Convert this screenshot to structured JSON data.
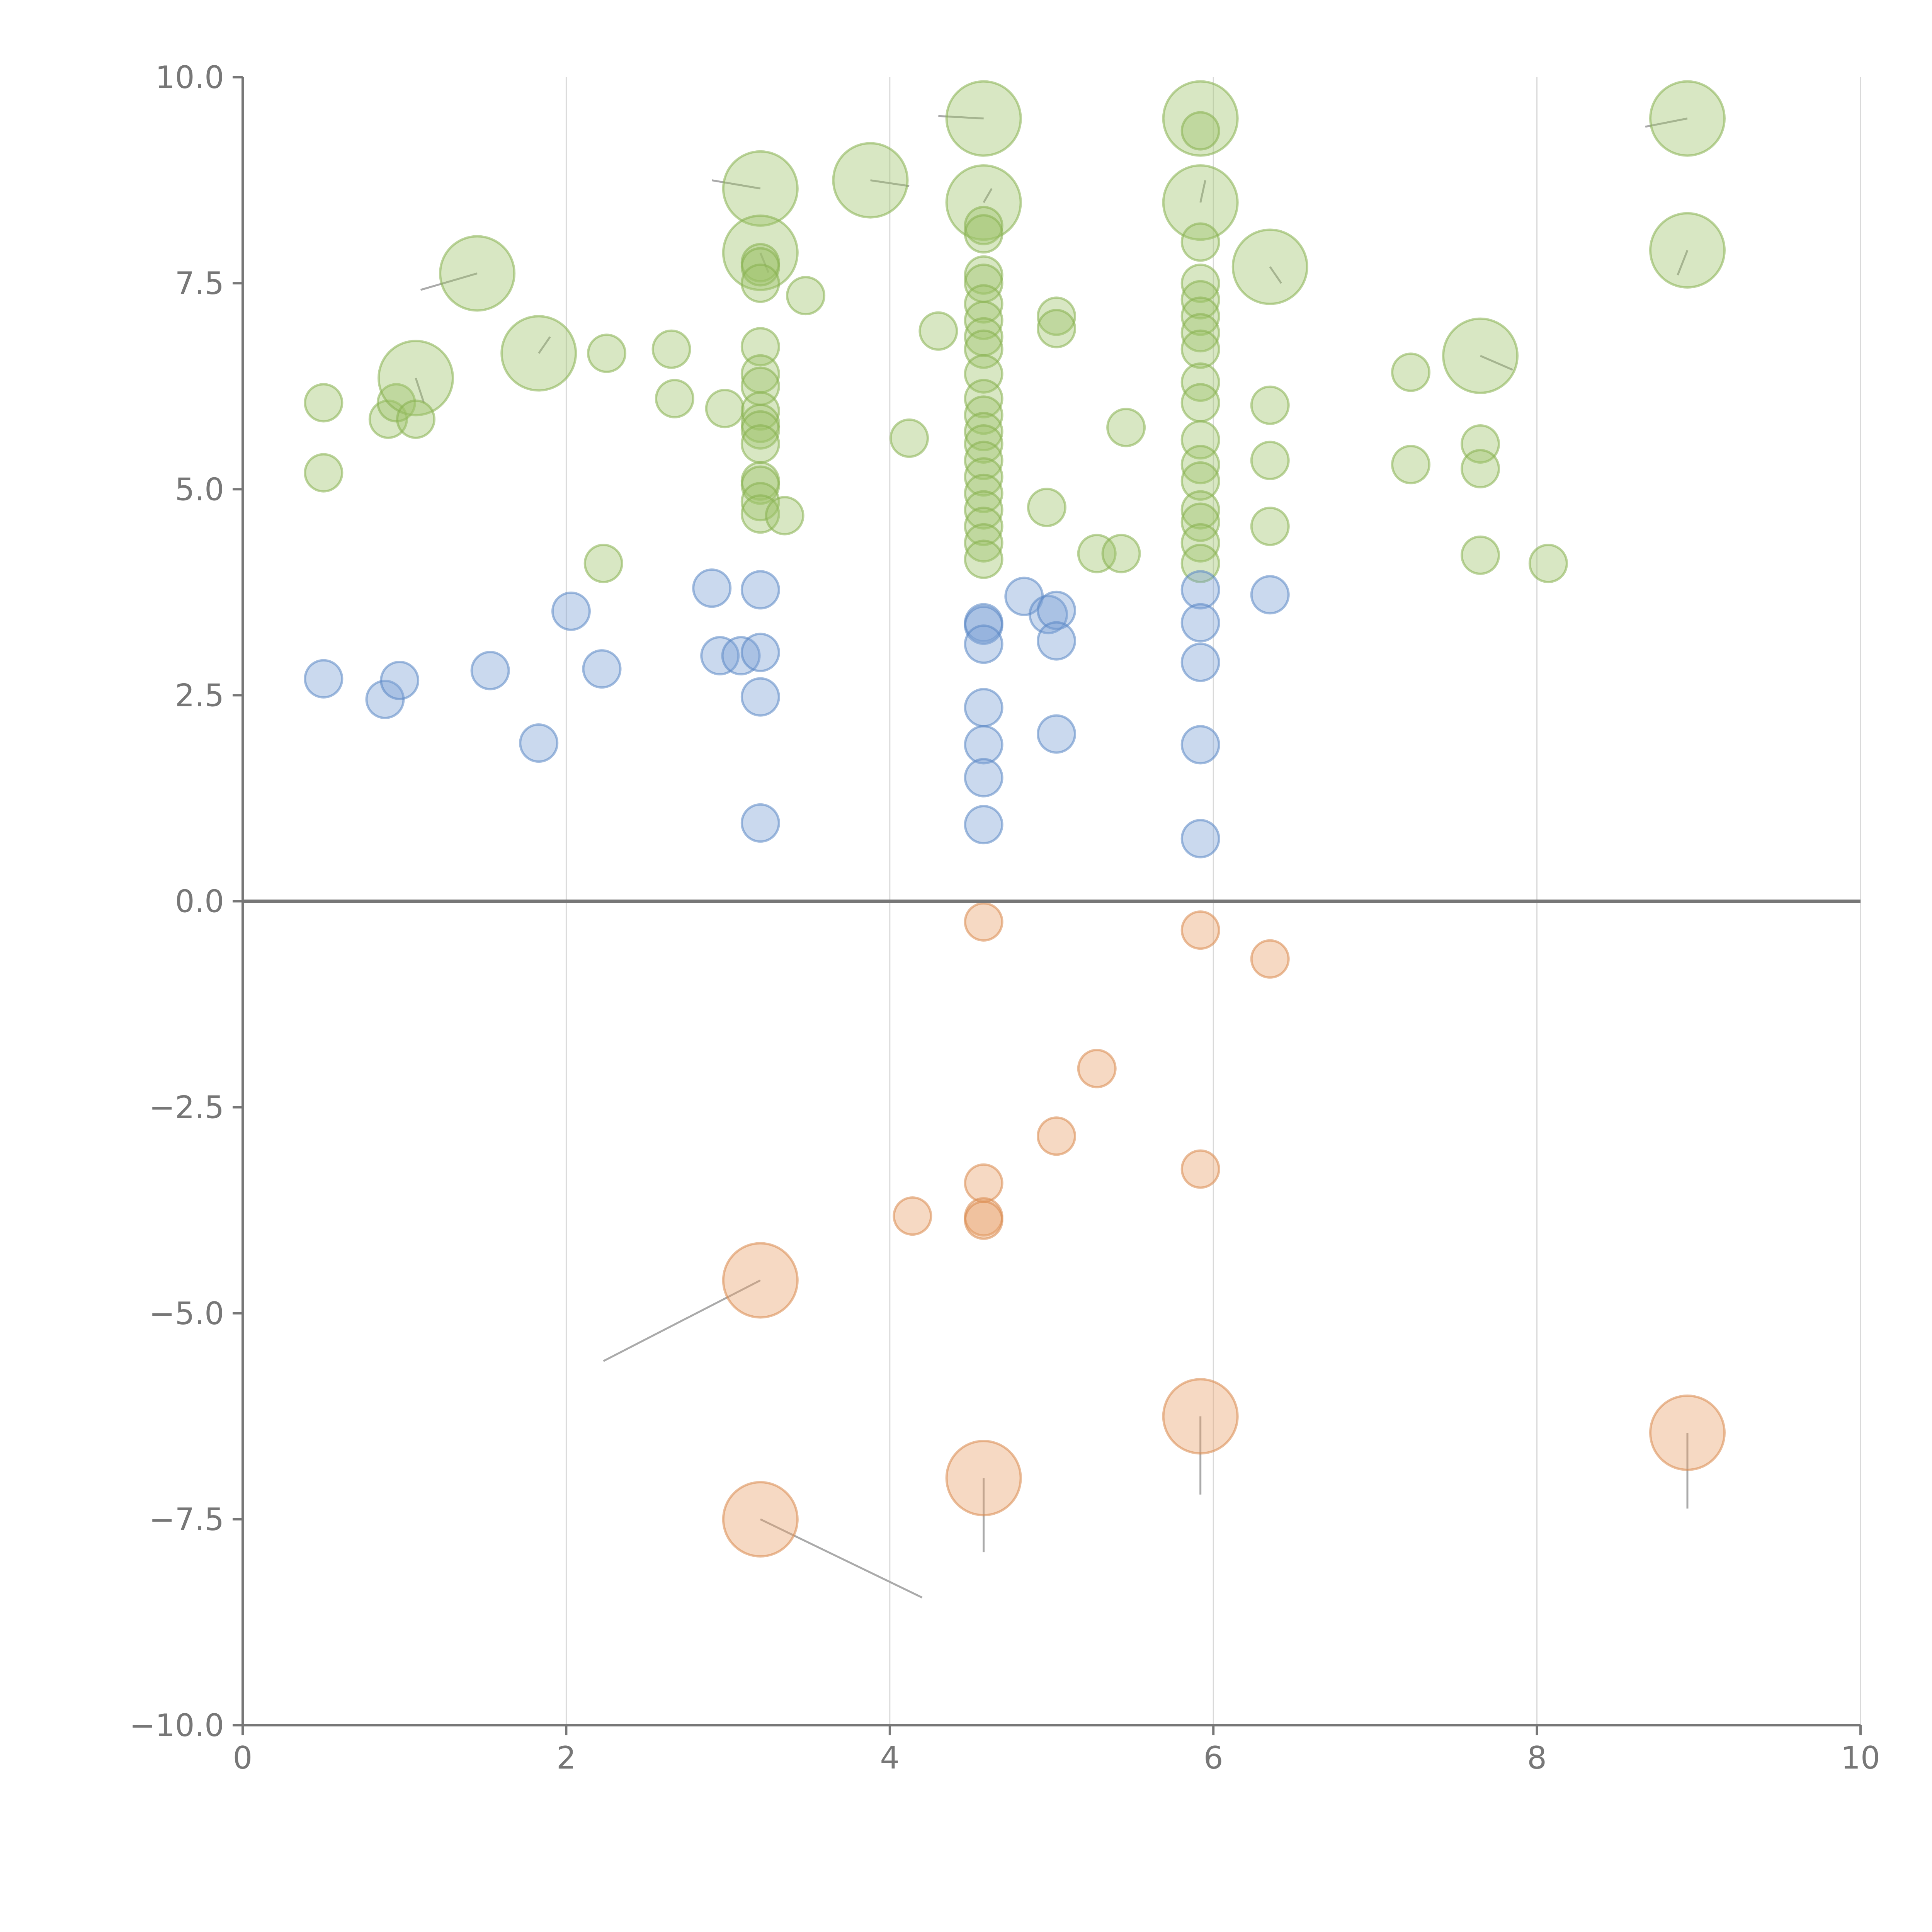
{
  "chart_data": {
    "type": "scatter",
    "subtype": "bubble",
    "title": "",
    "xlabel": "",
    "ylabel": "",
    "xlim": [
      0,
      10
    ],
    "ylim": [
      -10,
      10
    ],
    "x_ticks": [
      0,
      2,
      4,
      6,
      8,
      10
    ],
    "x_tick_labels": [
      "0",
      "2",
      "4",
      "6",
      "8",
      "10"
    ],
    "y_ticks": [
      -10,
      -7.5,
      -5,
      -2.5,
      0,
      2.5,
      5,
      7.5,
      10
    ],
    "y_tick_labels": [
      "−10.0",
      "−7.5",
      "−5.0",
      "−2.5",
      "0.0",
      "2.5",
      "5.0",
      "7.5",
      "10.0"
    ],
    "grid": "vertical",
    "reference_line": 0,
    "legend": "none",
    "colors": {
      "green_fill": "#9dc26a",
      "green_stroke": "#86b04f",
      "blue_fill": "#7b9fd4",
      "blue_stroke": "#5a86c5",
      "orange_fill": "#e8a06a",
      "orange_stroke": "#d9894d",
      "axis": "#777777",
      "grid": "#d9d9d9",
      "leader": "#aaaaaa"
    },
    "size_scale": {
      "small": 1,
      "large": 3
    },
    "series": [
      {
        "name": "green",
        "color_key": "green",
        "points": [
          {
            "x": 0.5,
            "y": 6.05,
            "s": 1
          },
          {
            "x": 0.5,
            "y": 5.2,
            "s": 1
          },
          {
            "x": 0.9,
            "y": 5.85,
            "s": 1
          },
          {
            "x": 0.95,
            "y": 6.05,
            "s": 1
          },
          {
            "x": 1.07,
            "y": 6.35,
            "s": 3
          },
          {
            "x": 1.07,
            "y": 5.85,
            "s": 1
          },
          {
            "x": 1.45,
            "y": 7.62,
            "s": 3
          },
          {
            "x": 1.83,
            "y": 6.65,
            "s": 3
          },
          {
            "x": 2.23,
            "y": 4.1,
            "s": 1
          },
          {
            "x": 2.25,
            "y": 6.65,
            "s": 1
          },
          {
            "x": 2.65,
            "y": 6.7,
            "s": 1
          },
          {
            "x": 2.67,
            "y": 6.1,
            "s": 1
          },
          {
            "x": 2.98,
            "y": 5.98,
            "s": 1
          },
          {
            "x": 3.2,
            "y": 8.65,
            "s": 3
          },
          {
            "x": 3.2,
            "y": 7.87,
            "s": 3
          },
          {
            "x": 3.2,
            "y": 7.75,
            "s": 1
          },
          {
            "x": 3.2,
            "y": 7.7,
            "s": 1
          },
          {
            "x": 3.2,
            "y": 7.5,
            "s": 1
          },
          {
            "x": 3.2,
            "y": 6.73,
            "s": 1
          },
          {
            "x": 3.2,
            "y": 6.4,
            "s": 1
          },
          {
            "x": 3.2,
            "y": 6.25,
            "s": 1
          },
          {
            "x": 3.2,
            "y": 5.95,
            "s": 1
          },
          {
            "x": 3.2,
            "y": 5.8,
            "s": 1
          },
          {
            "x": 3.2,
            "y": 5.72,
            "s": 1
          },
          {
            "x": 3.2,
            "y": 5.55,
            "s": 1
          },
          {
            "x": 3.2,
            "y": 5.1,
            "s": 1
          },
          {
            "x": 3.2,
            "y": 5.05,
            "s": 1
          },
          {
            "x": 3.2,
            "y": 4.85,
            "s": 1
          },
          {
            "x": 3.2,
            "y": 4.7,
            "s": 1
          },
          {
            "x": 3.35,
            "y": 4.68,
            "s": 1
          },
          {
            "x": 3.48,
            "y": 7.35,
            "s": 1
          },
          {
            "x": 3.88,
            "y": 8.75,
            "s": 3
          },
          {
            "x": 4.12,
            "y": 5.62,
            "s": 1
          },
          {
            "x": 4.3,
            "y": 6.92,
            "s": 1
          },
          {
            "x": 4.58,
            "y": 9.5,
            "s": 3
          },
          {
            "x": 4.58,
            "y": 8.48,
            "s": 3
          },
          {
            "x": 4.58,
            "y": 8.2,
            "s": 1
          },
          {
            "x": 4.58,
            "y": 8.1,
            "s": 1
          },
          {
            "x": 4.58,
            "y": 7.6,
            "s": 1
          },
          {
            "x": 4.58,
            "y": 7.5,
            "s": 1
          },
          {
            "x": 4.58,
            "y": 7.25,
            "s": 1
          },
          {
            "x": 4.58,
            "y": 7.05,
            "s": 1
          },
          {
            "x": 4.58,
            "y": 6.85,
            "s": 1
          },
          {
            "x": 4.58,
            "y": 6.7,
            "s": 1
          },
          {
            "x": 4.58,
            "y": 6.4,
            "s": 1
          },
          {
            "x": 4.58,
            "y": 6.1,
            "s": 1
          },
          {
            "x": 4.58,
            "y": 5.9,
            "s": 1
          },
          {
            "x": 4.58,
            "y": 5.7,
            "s": 1
          },
          {
            "x": 4.58,
            "y": 5.55,
            "s": 1
          },
          {
            "x": 4.58,
            "y": 5.35,
            "s": 1
          },
          {
            "x": 4.58,
            "y": 5.15,
            "s": 1
          },
          {
            "x": 4.58,
            "y": 4.95,
            "s": 1
          },
          {
            "x": 4.58,
            "y": 4.75,
            "s": 1
          },
          {
            "x": 4.58,
            "y": 4.55,
            "s": 1
          },
          {
            "x": 4.58,
            "y": 4.35,
            "s": 1
          },
          {
            "x": 4.58,
            "y": 4.15,
            "s": 1
          },
          {
            "x": 4.97,
            "y": 4.78,
            "s": 1
          },
          {
            "x": 5.03,
            "y": 7.1,
            "s": 1
          },
          {
            "x": 5.03,
            "y": 6.95,
            "s": 1
          },
          {
            "x": 5.28,
            "y": 4.22,
            "s": 1
          },
          {
            "x": 5.43,
            "y": 4.22,
            "s": 1
          },
          {
            "x": 5.46,
            "y": 5.75,
            "s": 1
          },
          {
            "x": 5.92,
            "y": 9.5,
            "s": 3
          },
          {
            "x": 5.92,
            "y": 8.48,
            "s": 3
          },
          {
            "x": 5.92,
            "y": 9.35,
            "s": 1
          },
          {
            "x": 5.92,
            "y": 8.0,
            "s": 1
          },
          {
            "x": 5.92,
            "y": 7.5,
            "s": 1
          },
          {
            "x": 5.92,
            "y": 7.3,
            "s": 1
          },
          {
            "x": 5.92,
            "y": 7.1,
            "s": 1
          },
          {
            "x": 5.92,
            "y": 6.9,
            "s": 1
          },
          {
            "x": 5.92,
            "y": 6.7,
            "s": 1
          },
          {
            "x": 5.92,
            "y": 6.3,
            "s": 1
          },
          {
            "x": 5.92,
            "y": 6.05,
            "s": 1
          },
          {
            "x": 5.92,
            "y": 5.6,
            "s": 1
          },
          {
            "x": 5.92,
            "y": 5.3,
            "s": 1
          },
          {
            "x": 5.92,
            "y": 5.1,
            "s": 1
          },
          {
            "x": 5.92,
            "y": 4.75,
            "s": 1
          },
          {
            "x": 5.92,
            "y": 4.6,
            "s": 1
          },
          {
            "x": 5.92,
            "y": 4.35,
            "s": 1
          },
          {
            "x": 5.92,
            "y": 4.1,
            "s": 1
          },
          {
            "x": 6.35,
            "y": 7.7,
            "s": 3
          },
          {
            "x": 6.35,
            "y": 6.02,
            "s": 1
          },
          {
            "x": 6.35,
            "y": 5.35,
            "s": 1
          },
          {
            "x": 6.35,
            "y": 4.55,
            "s": 1
          },
          {
            "x": 7.22,
            "y": 6.42,
            "s": 1
          },
          {
            "x": 7.22,
            "y": 5.3,
            "s": 1
          },
          {
            "x": 7.65,
            "y": 6.62,
            "s": 3
          },
          {
            "x": 7.65,
            "y": 5.55,
            "s": 1
          },
          {
            "x": 7.65,
            "y": 5.25,
            "s": 1
          },
          {
            "x": 7.65,
            "y": 4.2,
            "s": 1
          },
          {
            "x": 8.07,
            "y": 4.1,
            "s": 1
          },
          {
            "x": 8.93,
            "y": 9.5,
            "s": 3
          },
          {
            "x": 8.93,
            "y": 7.9,
            "s": 3
          }
        ]
      },
      {
        "name": "blue",
        "color_key": "blue",
        "points": [
          {
            "x": 0.5,
            "y": 2.7,
            "s": 1
          },
          {
            "x": 0.88,
            "y": 2.45,
            "s": 1
          },
          {
            "x": 0.97,
            "y": 2.68,
            "s": 1
          },
          {
            "x": 1.53,
            "y": 2.8,
            "s": 1
          },
          {
            "x": 1.83,
            "y": 1.92,
            "s": 1
          },
          {
            "x": 2.03,
            "y": 3.52,
            "s": 1
          },
          {
            "x": 2.22,
            "y": 2.82,
            "s": 1
          },
          {
            "x": 2.9,
            "y": 3.8,
            "s": 1
          },
          {
            "x": 2.95,
            "y": 2.98,
            "s": 1
          },
          {
            "x": 3.08,
            "y": 2.98,
            "s": 1
          },
          {
            "x": 3.2,
            "y": 3.78,
            "s": 1
          },
          {
            "x": 3.2,
            "y": 3.02,
            "s": 1
          },
          {
            "x": 3.2,
            "y": 2.48,
            "s": 1
          },
          {
            "x": 3.2,
            "y": 0.95,
            "s": 1
          },
          {
            "x": 4.58,
            "y": 3.38,
            "s": 1
          },
          {
            "x": 4.58,
            "y": 3.35,
            "s": 1
          },
          {
            "x": 4.58,
            "y": 3.12,
            "s": 1
          },
          {
            "x": 4.58,
            "y": 2.35,
            "s": 1
          },
          {
            "x": 4.58,
            "y": 1.9,
            "s": 1
          },
          {
            "x": 4.58,
            "y": 1.5,
            "s": 1
          },
          {
            "x": 4.58,
            "y": 0.93,
            "s": 1
          },
          {
            "x": 4.83,
            "y": 3.7,
            "s": 1
          },
          {
            "x": 4.98,
            "y": 3.48,
            "s": 1
          },
          {
            "x": 5.03,
            "y": 3.53,
            "s": 1
          },
          {
            "x": 5.03,
            "y": 3.16,
            "s": 1
          },
          {
            "x": 5.03,
            "y": 2.03,
            "s": 1
          },
          {
            "x": 5.92,
            "y": 3.78,
            "s": 1
          },
          {
            "x": 5.92,
            "y": 3.38,
            "s": 1
          },
          {
            "x": 5.92,
            "y": 2.9,
            "s": 1
          },
          {
            "x": 5.92,
            "y": 1.9,
            "s": 1
          },
          {
            "x": 5.92,
            "y": 0.76,
            "s": 1
          },
          {
            "x": 6.35,
            "y": 3.72,
            "s": 1
          }
        ]
      },
      {
        "name": "orange",
        "color_key": "orange",
        "points": [
          {
            "x": 3.2,
            "y": -4.6,
            "s": 3
          },
          {
            "x": 3.2,
            "y": -7.5,
            "s": 3
          },
          {
            "x": 4.14,
            "y": -3.82,
            "s": 1
          },
          {
            "x": 4.58,
            "y": -0.25,
            "s": 1
          },
          {
            "x": 4.58,
            "y": -3.42,
            "s": 1
          },
          {
            "x": 4.58,
            "y": -3.83,
            "s": 1
          },
          {
            "x": 4.58,
            "y": -3.87,
            "s": 1
          },
          {
            "x": 4.58,
            "y": -7.0,
            "s": 3
          },
          {
            "x": 5.03,
            "y": -2.85,
            "s": 1
          },
          {
            "x": 5.28,
            "y": -2.03,
            "s": 1
          },
          {
            "x": 5.92,
            "y": -0.35,
            "s": 1
          },
          {
            "x": 5.92,
            "y": -3.25,
            "s": 1
          },
          {
            "x": 5.92,
            "y": -6.25,
            "s": 3
          },
          {
            "x": 6.35,
            "y": -0.7,
            "s": 1
          },
          {
            "x": 8.93,
            "y": -6.45,
            "s": 3
          }
        ]
      }
    ],
    "annotations": [
      {
        "from": [
          1.45,
          7.62
        ],
        "to": [
          1.1,
          7.42
        ]
      },
      {
        "from": [
          1.07,
          6.35
        ],
        "to": [
          1.12,
          6.05
        ]
      },
      {
        "from": [
          1.83,
          6.65
        ],
        "to": [
          1.9,
          6.85
        ]
      },
      {
        "from": [
          3.2,
          8.65
        ],
        "to": [
          2.9,
          8.75
        ]
      },
      {
        "from": [
          3.2,
          7.87
        ],
        "to": [
          3.25,
          7.63
        ]
      },
      {
        "from": [
          3.88,
          8.75
        ],
        "to": [
          4.12,
          8.68
        ]
      },
      {
        "from": [
          4.58,
          9.5
        ],
        "to": [
          4.3,
          9.53
        ]
      },
      {
        "from": [
          4.58,
          8.48
        ],
        "to": [
          4.63,
          8.65
        ]
      },
      {
        "from": [
          5.92,
          8.48
        ],
        "to": [
          5.95,
          8.75
        ]
      },
      {
        "from": [
          6.35,
          7.7
        ],
        "to": [
          6.42,
          7.5
        ]
      },
      {
        "from": [
          7.65,
          6.62
        ],
        "to": [
          7.85,
          6.45
        ]
      },
      {
        "from": [
          8.93,
          9.5
        ],
        "to": [
          8.67,
          9.4
        ]
      },
      {
        "from": [
          8.93,
          7.9
        ],
        "to": [
          8.87,
          7.6
        ]
      },
      {
        "from": [
          3.2,
          -4.6
        ],
        "to": [
          2.23,
          -5.58
        ]
      },
      {
        "from": [
          3.2,
          -7.5
        ],
        "to": [
          4.2,
          -8.45
        ]
      },
      {
        "from": [
          4.58,
          -7.0
        ],
        "to": [
          4.58,
          -7.9
        ]
      },
      {
        "from": [
          5.92,
          -6.25
        ],
        "to": [
          5.92,
          -7.2
        ]
      },
      {
        "from": [
          8.93,
          -6.45
        ],
        "to": [
          8.93,
          -7.37
        ]
      }
    ]
  }
}
